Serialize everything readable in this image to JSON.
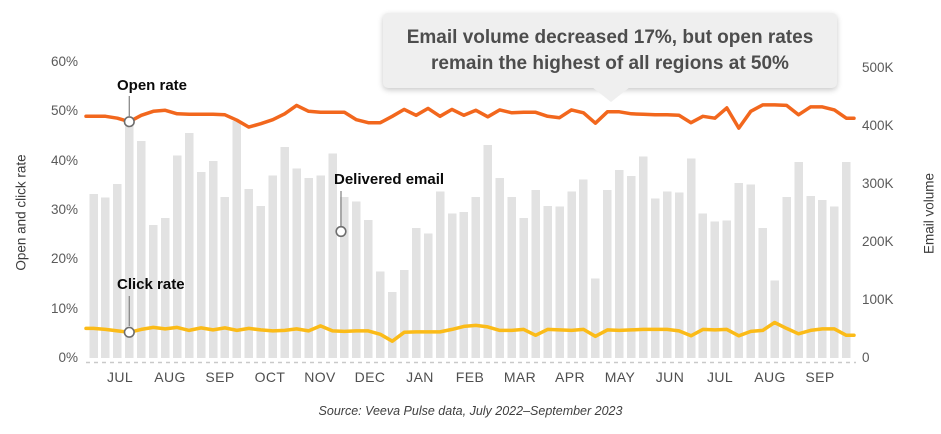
{
  "callout": {
    "line1": "Email volume decreased 17%, but open rates",
    "line2": "remain the highest of all regions at 50%"
  },
  "axes": {
    "left_title": "Open and click rate",
    "right_title": "Email volume",
    "left_ticks": [
      "0%",
      "10%",
      "20%",
      "30%",
      "40%",
      "50%",
      "60%"
    ],
    "right_ticks": [
      "0",
      "100K",
      "200K",
      "300K",
      "400K",
      "500K"
    ]
  },
  "annotations": {
    "open_rate": "Open rate",
    "click_rate": "Click rate",
    "delivered_email": "Delivered email"
  },
  "source": "Source: Veeva Pulse data, July 2022–September 2023",
  "colors": {
    "open_rate_line": "#F2671D",
    "click_rate_line": "#FBBB18",
    "bars": "#E2E2E2",
    "callout_bg": "#EFEFEF",
    "baseline_dash": "#C9C9C9",
    "marker_stroke": "#6E6E6E",
    "leader_line": "#8A8A8A"
  },
  "chart_data": {
    "type": "bar",
    "subtype": "weekly bars with two overlay line series (combo chart)",
    "title": "",
    "xlabel": "",
    "x": {
      "granularity": "weekly",
      "months": [
        "JUL",
        "AUG",
        "SEP",
        "OCT",
        "NOV",
        "DEC",
        "JAN",
        "FEB",
        "MAR",
        "APR",
        "MAY",
        "JUN",
        "JUL",
        "AUG",
        "SEP"
      ],
      "start": "July 2022",
      "end": "September 2023"
    },
    "ylim_left_pct": [
      0,
      60
    ],
    "ylim_right_volume": [
      0,
      500000
    ],
    "legend_position": "inline annotations",
    "grid": "dashed zero baseline only",
    "series": [
      {
        "name": "Delivered email",
        "type": "bar",
        "axis": "right",
        "unit": "emails (thousands)",
        "values": [
          283,
          277,
          300,
          408,
          374,
          229,
          241,
          349,
          388,
          321,
          340,
          278,
          409,
          291,
          262,
          315,
          364,
          327,
          310,
          315,
          353,
          278,
          270,
          238,
          149,
          114,
          152,
          224,
          215,
          287,
          249,
          252,
          278,
          367,
          310,
          278,
          241,
          290,
          262,
          261,
          287,
          308,
          137,
          290,
          324,
          314,
          347,
          275,
          287,
          285,
          344,
          249,
          235,
          237,
          302,
          299,
          224,
          134,
          278,
          338,
          279,
          272,
          261,
          338
        ]
      },
      {
        "name": "Open rate",
        "type": "line",
        "axis": "left",
        "unit": "%",
        "values": [
          49,
          49,
          48.6,
          47.9,
          49.2,
          50,
          50.2,
          49.5,
          49.4,
          49.4,
          49.4,
          49.3,
          48.2,
          46.8,
          47.5,
          48.3,
          49.5,
          51.2,
          50,
          49.8,
          49.8,
          49.8,
          48.3,
          47.7,
          47.7,
          49,
          50.4,
          49.2,
          50.6,
          49,
          50.4,
          49.2,
          50.2,
          48.9,
          50.3,
          49.7,
          49.8,
          49.8,
          49,
          48.7,
          50.3,
          49.7,
          47.6,
          49.9,
          49.9,
          49.5,
          49.4,
          49.3,
          49.3,
          49.2,
          47.7,
          49,
          48.6,
          50.7,
          46.6,
          50,
          51.3,
          51.3,
          51.2,
          49.3,
          50.9,
          50.9,
          50.3,
          48.6
        ]
      },
      {
        "name": "Click rate",
        "type": "line",
        "axis": "left",
        "unit": "%",
        "values": [
          6,
          5.8,
          5.5,
          5.2,
          5.8,
          6.2,
          5.9,
          6.2,
          5.6,
          6.1,
          5.7,
          6.1,
          5.6,
          6,
          5.7,
          5.5,
          5.6,
          5.9,
          5.5,
          6.5,
          5.5,
          5.4,
          5.5,
          5.5,
          4.8,
          3.4,
          5.2,
          5.3,
          5.3,
          5.3,
          5.8,
          6.4,
          6.6,
          6.3,
          5.6,
          5.6,
          5.8,
          4.6,
          5.8,
          5.7,
          5.6,
          5.8,
          4.4,
          5.7,
          5.6,
          5.7,
          5.8,
          5.8,
          5.8,
          5.5,
          4.5,
          5.8,
          5.7,
          5.8,
          4.5,
          5.4,
          5.6,
          7.2,
          6,
          4.9,
          5.6,
          5.9,
          5.9,
          4.6
        ]
      }
    ]
  }
}
